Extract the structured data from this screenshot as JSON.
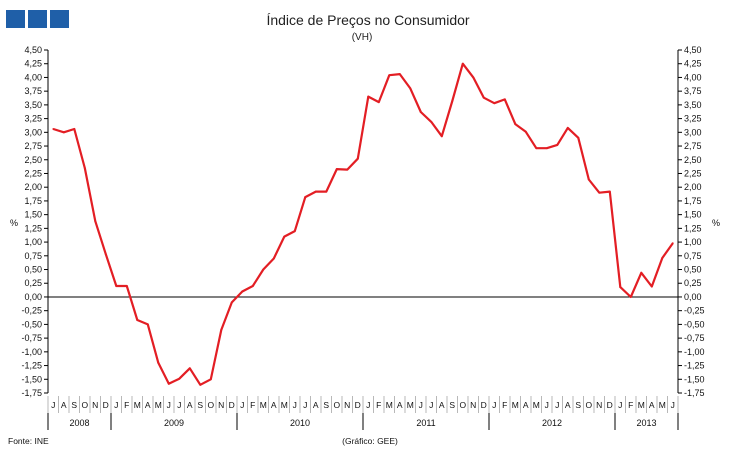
{
  "logo": {
    "icon": "ine-logo-squares",
    "color": "#1f5fa8"
  },
  "chart_data": {
    "type": "line",
    "title": "Índice de Preços no Consumidor",
    "subtitle": "(VH)",
    "ylabel_left": "%",
    "ylabel_right": "%",
    "ylim": [
      -1.75,
      4.5
    ],
    "ytick_step": 0.25,
    "y_ticks": [
      "4,50",
      "4,25",
      "4,00",
      "3,75",
      "3,50",
      "3,25",
      "3,00",
      "2,75",
      "2,50",
      "2,25",
      "2,00",
      "1,75",
      "1,50",
      "1,25",
      "1,00",
      "0,75",
      "0,50",
      "0,25",
      "0,00",
      "-0,25",
      "-0,50",
      "-0,75",
      "-1,00",
      "-1,25",
      "-1,50",
      "-1,75"
    ],
    "months": [
      "J",
      "A",
      "S",
      "O",
      "N",
      "D",
      "J",
      "F",
      "M",
      "A",
      "M",
      "J",
      "J",
      "A",
      "S",
      "O",
      "N",
      "D",
      "J",
      "F",
      "M",
      "A",
      "M",
      "J",
      "J",
      "A",
      "S",
      "O",
      "N",
      "D",
      "J",
      "F",
      "M",
      "A",
      "M",
      "J",
      "J",
      "A",
      "S",
      "O",
      "N",
      "D",
      "J",
      "F",
      "M",
      "A",
      "M",
      "J",
      "J",
      "A",
      "S",
      "O",
      "N",
      "D",
      "J",
      "F",
      "M",
      "A",
      "M",
      "J"
    ],
    "years": [
      {
        "label": "2008",
        "start": 0,
        "end": 5
      },
      {
        "label": "2009",
        "start": 6,
        "end": 17
      },
      {
        "label": "2010",
        "start": 18,
        "end": 29
      },
      {
        "label": "2011",
        "start": 30,
        "end": 41
      },
      {
        "label": "2012",
        "start": 42,
        "end": 53
      },
      {
        "label": "2013",
        "start": 54,
        "end": 59
      }
    ],
    "series": [
      {
        "name": "IPC (VH)",
        "color": "#e31e24",
        "values": [
          3.06,
          3.0,
          3.06,
          2.35,
          1.38,
          0.78,
          0.2,
          0.2,
          -0.42,
          -0.5,
          -1.2,
          -1.58,
          -1.49,
          -1.3,
          -1.6,
          -1.5,
          -0.6,
          -0.1,
          0.1,
          0.2,
          0.5,
          0.7,
          1.1,
          1.2,
          1.82,
          1.92,
          1.92,
          2.33,
          2.32,
          2.52,
          3.65,
          3.55,
          4.04,
          4.06,
          3.8,
          3.37,
          3.19,
          2.93,
          3.57,
          4.25,
          4.0,
          3.63,
          3.53,
          3.6,
          3.15,
          3.01,
          2.71,
          2.71,
          2.77,
          3.08,
          2.9,
          2.14,
          1.9,
          1.92,
          0.18,
          0.0,
          0.44,
          0.19,
          0.71,
          0.98
        ]
      }
    ],
    "source_label": "Fonte: INE",
    "credit_label": "(Gráfico: GEE)"
  }
}
